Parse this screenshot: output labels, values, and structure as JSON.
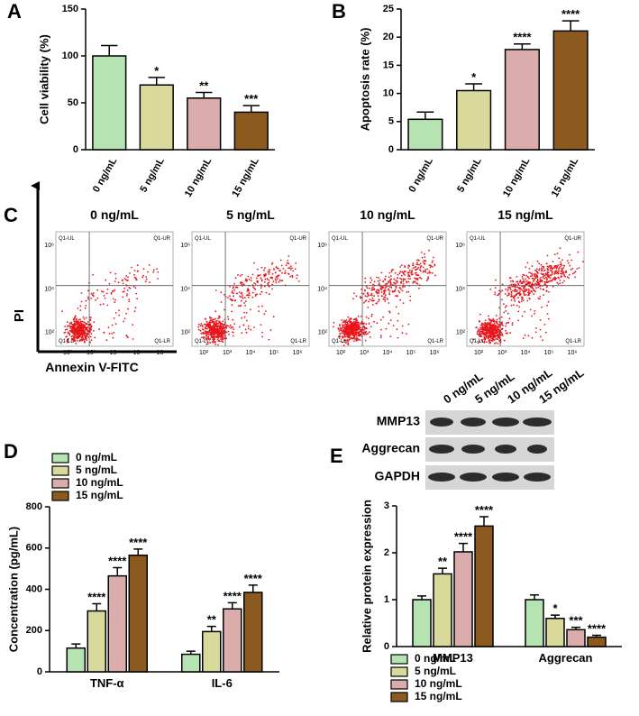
{
  "chart_data": [
    {
      "type": "bar",
      "panel_label": "A",
      "y_label": "Cell viability (%)",
      "categories": [
        "0 ng/mL",
        "5 ng/mL",
        "10 ng/mL",
        "15 ng/mL"
      ],
      "values": [
        100,
        69,
        55,
        40
      ],
      "errors": [
        11,
        8,
        6,
        7
      ],
      "annotations": [
        null,
        "*",
        "**",
        "***"
      ],
      "colors": [
        "#b5e3b2",
        "#d9d99c",
        "#dbacac",
        "#8c5a1f"
      ],
      "ylim": [
        0,
        150
      ],
      "yticks": [
        0,
        50,
        100,
        150
      ]
    },
    {
      "type": "bar",
      "panel_label": "B",
      "y_label": "Apoptosis rate (%)",
      "categories": [
        "0 ng/mL",
        "5 ng/mL",
        "10 ng/mL",
        "15 ng/mL"
      ],
      "values": [
        5.4,
        10.5,
        17.8,
        21.1
      ],
      "errors": [
        1.3,
        1.2,
        1.0,
        1.8
      ],
      "annotations": [
        null,
        "*",
        "****",
        "****"
      ],
      "colors": [
        "#b5e3b2",
        "#d9d99c",
        "#dbacac",
        "#8c5a1f"
      ],
      "ylim": [
        0,
        25
      ],
      "yticks": [
        0,
        5,
        10,
        15,
        20,
        25
      ]
    },
    {
      "type": "bar",
      "panel_label": "D",
      "y_label": "Concentration (pg/mL)",
      "categories": [
        "TNF-α",
        "IL-6"
      ],
      "legend": "top-left",
      "series": [
        {
          "name": "0 ng/mL",
          "color": "#b5e3b2",
          "values": [
            115,
            85
          ],
          "errors": [
            20,
            15
          ],
          "annotations": [
            null,
            null
          ]
        },
        {
          "name": "5 ng/mL",
          "color": "#d9d99c",
          "values": [
            295,
            195
          ],
          "errors": [
            35,
            25
          ],
          "annotations": [
            "****",
            "**"
          ]
        },
        {
          "name": "10 ng/mL",
          "color": "#dbacac",
          "values": [
            465,
            305
          ],
          "errors": [
            40,
            30
          ],
          "annotations": [
            "****",
            "****"
          ]
        },
        {
          "name": "15 ng/mL",
          "color": "#8c5a1f",
          "values": [
            565,
            385
          ],
          "errors": [
            30,
            35
          ],
          "annotations": [
            "****",
            "****"
          ]
        }
      ],
      "ylim": [
        0,
        800
      ],
      "yticks": [
        0,
        200,
        400,
        600,
        800
      ]
    },
    {
      "type": "bar",
      "panel_label": "E",
      "y_label": "Relative protein expression",
      "categories": [
        "MMP13",
        "Aggrecan"
      ],
      "legend": "bottom-left",
      "series": [
        {
          "name": "0 ng/mL",
          "color": "#b5e3b2",
          "values": [
            1.0,
            1.0
          ],
          "errors": [
            0.08,
            0.1
          ],
          "annotations": [
            null,
            null
          ]
        },
        {
          "name": "5 ng/mL",
          "color": "#d9d99c",
          "values": [
            1.55,
            0.6
          ],
          "errors": [
            0.12,
            0.07
          ],
          "annotations": [
            "**",
            "*"
          ]
        },
        {
          "name": "10 ng/mL",
          "color": "#dbacac",
          "values": [
            2.02,
            0.36
          ],
          "errors": [
            0.18,
            0.05
          ],
          "annotations": [
            "****",
            "***"
          ]
        },
        {
          "name": "15 ng/mL",
          "color": "#8c5a1f",
          "values": [
            2.57,
            0.2
          ],
          "errors": [
            0.2,
            0.04
          ],
          "annotations": [
            "****",
            "****"
          ]
        }
      ],
      "ylim": [
        0,
        3
      ],
      "yticks": [
        0,
        1,
        2,
        3
      ]
    }
  ],
  "panel_c": {
    "label": "C",
    "titles": [
      "0 ng/mL",
      "5 ng/mL",
      "10 ng/mL",
      "15 ng/mL"
    ],
    "y_axis_label": "PI",
    "x_axis_label": "Annexin V-FITC",
    "quadrants": [
      "Q1-UL",
      "Q1-UR",
      "Q1-LL",
      "Q1-LR"
    ],
    "x_ticks": [
      "10²",
      "10³",
      "10⁴",
      "10⁵",
      "10⁶"
    ],
    "y_ticks": [
      "10⁶",
      "10⁴",
      "10²"
    ]
  },
  "blot": {
    "lanes": [
      "0 ng/mL",
      "5 ng/mL",
      "10 ng/mL",
      "15 ng/mL"
    ],
    "rows": [
      "MMP13",
      "Aggrecan",
      "GAPDH"
    ]
  }
}
